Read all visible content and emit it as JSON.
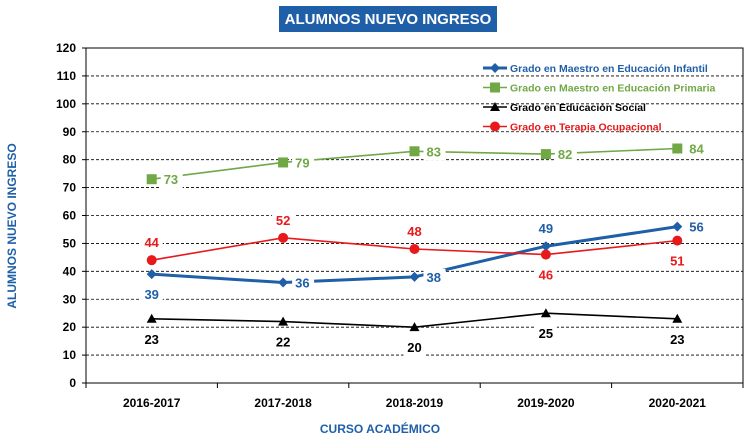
{
  "chart_data": {
    "type": "line",
    "title": "ALUMNOS NUEVO INGRESO",
    "xlabel": "CURSO ACADÉMICO",
    "ylabel": "ALUMNOS NUEVO INGRESO",
    "categories": [
      "2016-2017",
      "2017-2018",
      "2018-2019",
      "2019-2020",
      "2020-2021"
    ],
    "ylim": [
      0,
      120
    ],
    "yticks": [
      0,
      10,
      20,
      30,
      40,
      50,
      60,
      70,
      80,
      90,
      100,
      110,
      120
    ],
    "grid": true,
    "legend_position": "top-right",
    "series": [
      {
        "name": "Grado en Maestro en Educación Infantil",
        "color": "#1f5fa8",
        "marker": "diamond",
        "values": [
          39,
          36,
          38,
          49,
          56
        ],
        "label_pos": [
          "below",
          "right",
          "right",
          "above",
          "right"
        ]
      },
      {
        "name": "Grado en Maestro en Educación Primaria",
        "color": "#70a846",
        "marker": "square",
        "values": [
          73,
          79,
          83,
          82,
          84
        ],
        "label_pos": [
          "right",
          "right",
          "right",
          "right",
          "right"
        ]
      },
      {
        "name": "Grado en Educación Social",
        "color": "#000000",
        "marker": "triangle",
        "values": [
          23,
          22,
          20,
          25,
          23
        ],
        "label_pos": [
          "below",
          "below",
          "below",
          "below",
          "below"
        ]
      },
      {
        "name": "Grado en Terapia Ocupacional",
        "color": "#e8191a",
        "marker": "circle",
        "values": [
          44,
          52,
          48,
          46,
          51
        ],
        "label_pos": [
          "above",
          "above",
          "above",
          "below",
          "below"
        ]
      }
    ]
  }
}
